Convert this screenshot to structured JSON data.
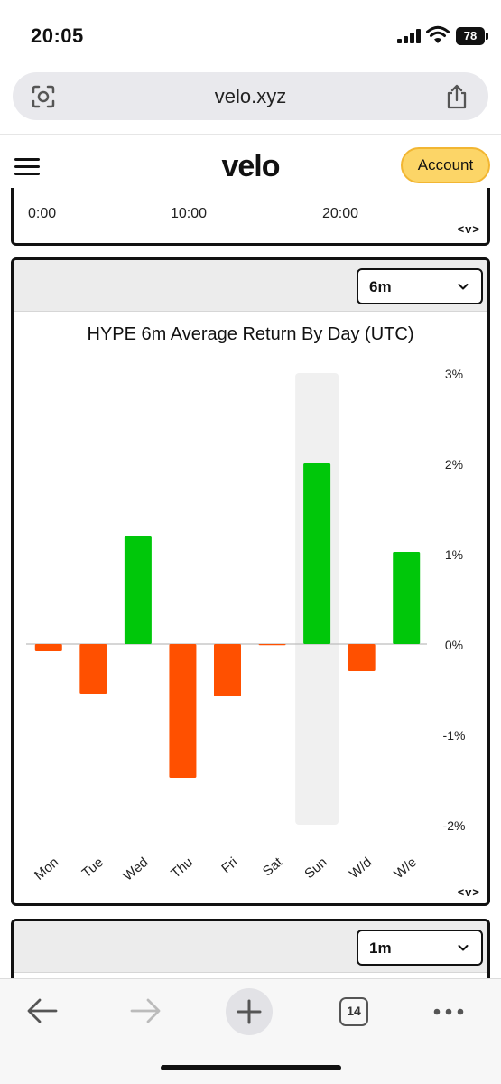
{
  "status_bar": {
    "time": "20:05",
    "battery": "78",
    "icons": [
      "signal-icon",
      "wifi-icon",
      "battery-icon"
    ]
  },
  "url_bar": {
    "url": "velo.xyz",
    "icons": [
      "lens-icon",
      "share-icon"
    ]
  },
  "header": {
    "logo": "velo",
    "account_label": "Account",
    "icons": [
      "menu-icon"
    ]
  },
  "top_card": {
    "time_ticks": [
      "0:00",
      "10:00",
      "20:00"
    ],
    "nav_label": "<v>"
  },
  "main_card": {
    "period": "6m",
    "nav_label": "<v>"
  },
  "bottom_card": {
    "period": "1m"
  },
  "chart_data": {
    "type": "bar",
    "title": "HYPE 6m Average Return By Day (UTC)",
    "categories": [
      "Mon",
      "Tue",
      "Wed",
      "Thu",
      "Fri",
      "Sat",
      "Sun",
      "W/d",
      "W/e"
    ],
    "values": [
      -0.08,
      -0.55,
      1.2,
      -1.48,
      -0.58,
      -0.01,
      2.0,
      -0.3,
      1.02
    ],
    "ylim": [
      -2,
      3
    ],
    "yticks": [
      3,
      2,
      1,
      0,
      -1,
      -2
    ],
    "ytick_labels": [
      "3%",
      "2%",
      "1%",
      "0%",
      "-1%",
      "-2%"
    ],
    "highlight_category": "Sun",
    "positive_color": "#00c70a",
    "negative_color": "#ff5000",
    "highlight_color": "#f0f0f0",
    "axis_position": "right",
    "grid": false,
    "xlabel": "",
    "ylabel": ""
  },
  "toolbar": {
    "tabs_count": "14",
    "icons": [
      "back-icon",
      "forward-icon",
      "new-tab-icon",
      "tabs-icon",
      "more-icon"
    ]
  }
}
